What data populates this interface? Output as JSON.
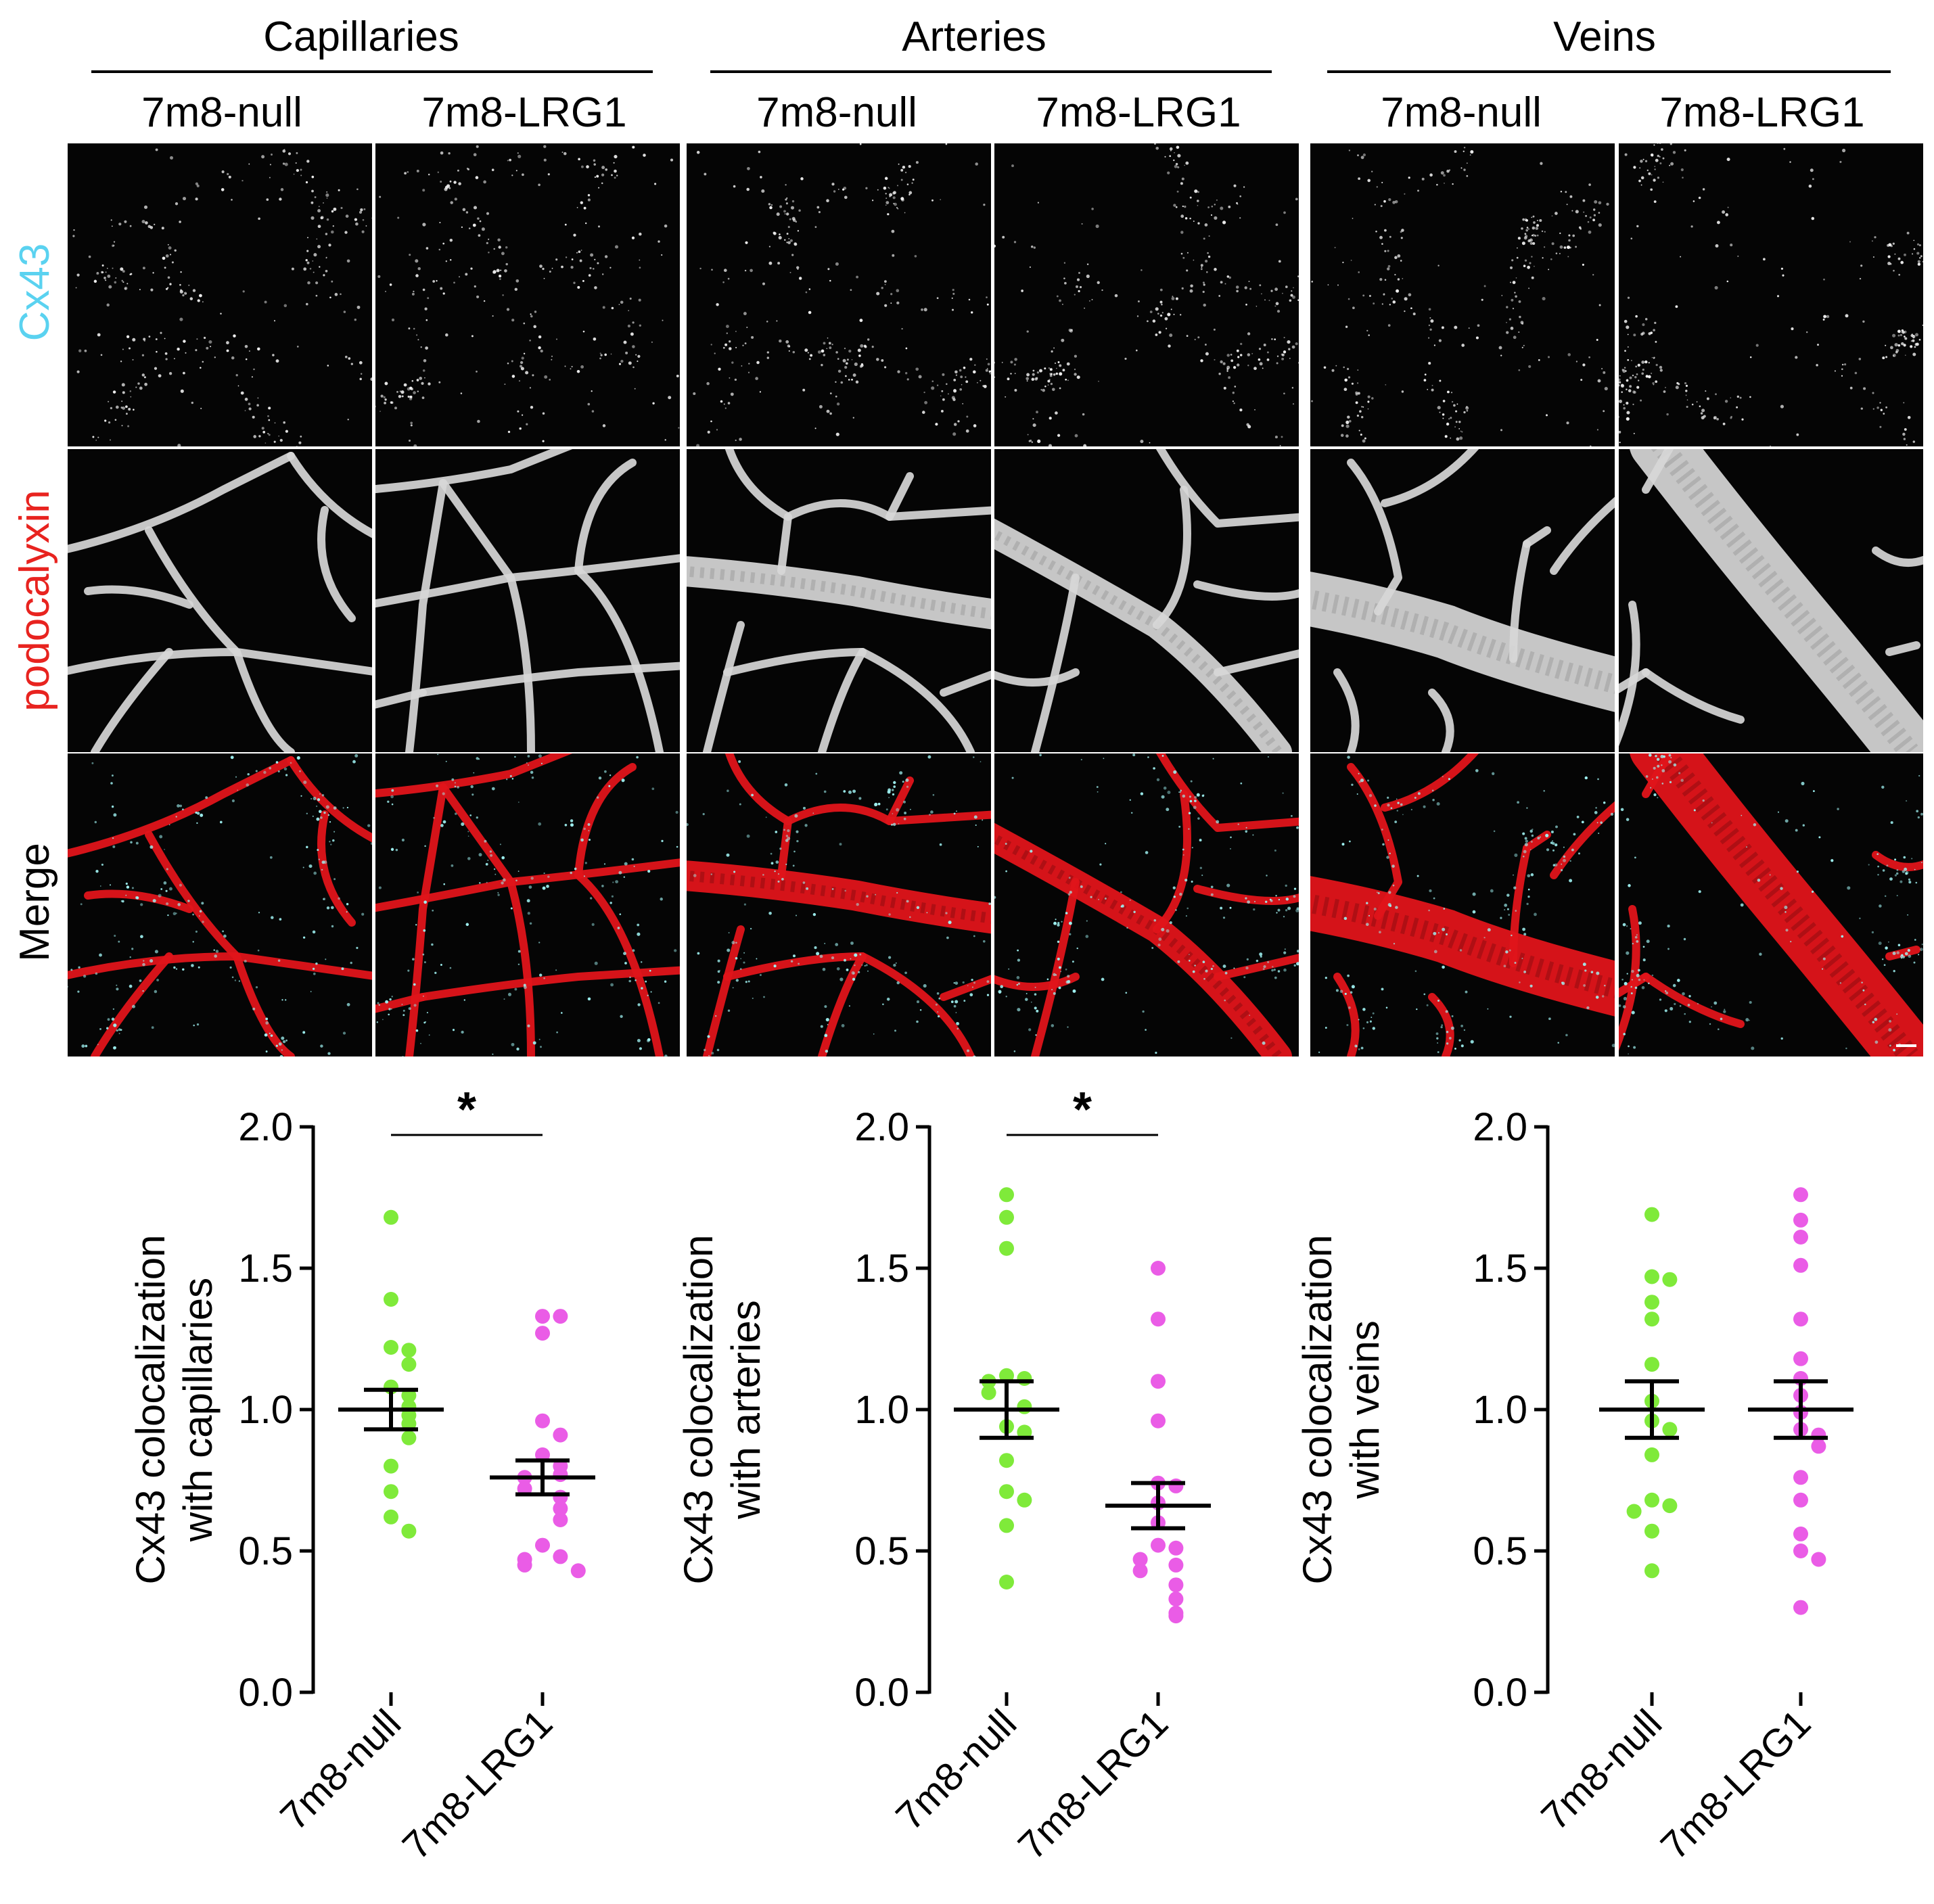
{
  "figure": {
    "groups": [
      {
        "title": "Capillaries",
        "conditions": [
          "7m8-null",
          "7m8-LRG1"
        ]
      },
      {
        "title": "Arteries",
        "conditions": [
          "7m8-null",
          "7m8-LRG1"
        ]
      },
      {
        "title": "Veins",
        "conditions": [
          "7m8-null",
          "7m8-LRG1"
        ]
      }
    ],
    "row_labels": [
      {
        "label": "Cx43",
        "color": "#5ad2f0"
      },
      {
        "label": "podocalyxin",
        "color": "#e8231f"
      },
      {
        "label": "Merge",
        "color": "#000000"
      }
    ],
    "colors": {
      "null_points": "#7fea3a",
      "lrg1_points": "#ea5ce6",
      "vessel_red": "#e0141a",
      "vessel_gray": "#d7d7d7",
      "cx43_cyan": "#9ff2f2"
    }
  },
  "chart_data": [
    {
      "type": "scatter",
      "ylabel": "Cx43 colocalization with capillaries",
      "categories": [
        "7m8-null",
        "7m8-LRG1"
      ],
      "ylim": [
        0,
        2.0
      ],
      "yticks": [
        "0.0",
        "0.5",
        "1.0",
        "1.5",
        "2.0"
      ],
      "significance": "*",
      "series": [
        {
          "name": "7m8-null",
          "values": [
            1.68,
            1.39,
            1.22,
            1.21,
            1.16,
            1.08,
            1.05,
            1.01,
            0.98,
            0.95,
            0.9,
            0.8,
            0.71,
            0.62,
            0.57
          ],
          "mean": 1.0,
          "sem": 0.07
        },
        {
          "name": "7m8-LRG1",
          "values": [
            1.33,
            1.33,
            1.27,
            0.96,
            0.91,
            0.84,
            0.8,
            0.77,
            0.76,
            0.72,
            0.69,
            0.65,
            0.61,
            0.52,
            0.48,
            0.47,
            0.45,
            0.43
          ],
          "mean": 0.76,
          "sem": 0.06
        }
      ]
    },
    {
      "type": "scatter",
      "ylabel": "Cx43 colocalization with arteries",
      "categories": [
        "7m8-null",
        "7m8-LRG1"
      ],
      "ylim": [
        0,
        2.0
      ],
      "yticks": [
        "0.0",
        "0.5",
        "1.0",
        "1.5",
        "2.0"
      ],
      "significance": "*",
      "series": [
        {
          "name": "7m8-null",
          "values": [
            1.76,
            1.68,
            1.57,
            1.12,
            1.11,
            1.1,
            1.06,
            1.01,
            0.94,
            0.92,
            0.82,
            0.71,
            0.68,
            0.59,
            0.39
          ],
          "mean": 1.0,
          "sem": 0.1
        },
        {
          "name": "7m8-LRG1",
          "values": [
            1.5,
            1.32,
            1.1,
            0.96,
            0.74,
            0.73,
            0.67,
            0.6,
            0.52,
            0.51,
            0.47,
            0.45,
            0.43,
            0.38,
            0.33,
            0.28,
            0.27
          ],
          "mean": 0.66,
          "sem": 0.08
        }
      ]
    },
    {
      "type": "scatter",
      "ylabel": "Cx43 colocalization with veins",
      "categories": [
        "7m8-null",
        "7m8-LRG1"
      ],
      "ylim": [
        0,
        2.0
      ],
      "yticks": [
        "0.0",
        "0.5",
        "1.0",
        "1.5",
        "2.0"
      ],
      "significance": "",
      "series": [
        {
          "name": "7m8-null",
          "values": [
            1.69,
            1.47,
            1.46,
            1.38,
            1.32,
            1.16,
            1.03,
            0.96,
            0.93,
            0.84,
            0.68,
            0.66,
            0.64,
            0.57,
            0.43
          ],
          "mean": 1.0,
          "sem": 0.1
        },
        {
          "name": "7m8-LRG1",
          "values": [
            1.76,
            1.67,
            1.61,
            1.51,
            1.32,
            1.18,
            1.11,
            1.05,
            0.99,
            0.93,
            0.91,
            0.87,
            0.76,
            0.68,
            0.56,
            0.5,
            0.47,
            0.3
          ],
          "mean": 1.0,
          "sem": 0.1
        }
      ]
    }
  ]
}
